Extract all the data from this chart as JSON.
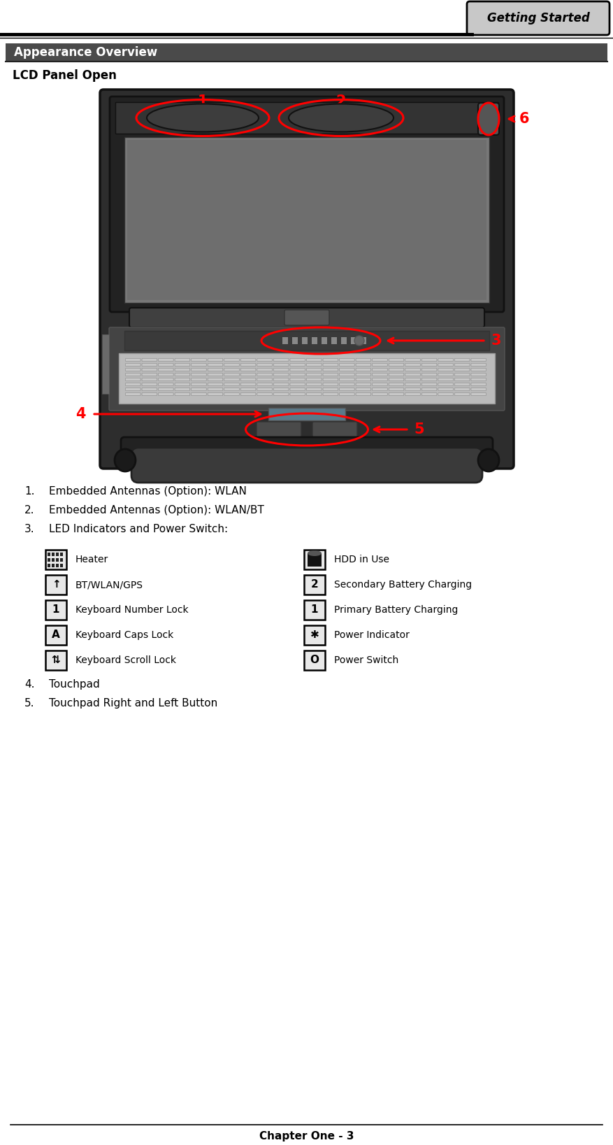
{
  "page_title": "Getting Started",
  "section_title": "Appearance Overview",
  "subsection": "LCD Panel Open",
  "numbered_items": [
    "Embedded Antennas (Option): WLAN",
    "Embedded Antennas (Option): WLAN/BT",
    "LED Indicators and Power Switch:",
    "Touchpad",
    "Touchpad Right and Left Button"
  ],
  "led_items_left": [
    [
      "Heater",
      "~"
    ],
    [
      "BT/WLAN/GPS",
      "↑"
    ],
    [
      "Keyboard Number Lock",
      "1"
    ],
    [
      "Keyboard Caps Lock",
      "A"
    ],
    [
      "Keyboard Scroll Lock",
      "⇅"
    ]
  ],
  "led_items_right": [
    [
      "HDD in Use",
      "▮"
    ],
    [
      "Secondary Battery Charging",
      "2"
    ],
    [
      "Primary Battery Charging",
      "1"
    ],
    [
      "Power Indicator",
      "✱"
    ],
    [
      "Power Switch",
      "O"
    ]
  ],
  "footer": "Chapter One - 3",
  "bg_color": "#ffffff",
  "header_tab_color": "#c8c8c8",
  "section_bar_color": "#4a4a4a",
  "section_text_color": "#ffffff",
  "arrow_color": "#ff0000",
  "body_text_color": "#000000",
  "laptop_outer_color": "#3a3a3a",
  "laptop_dark": "#1a1a1a",
  "laptop_medium": "#5a5a5a",
  "laptop_light": "#7a7a7a",
  "screen_color": "#6a6a6a",
  "kb_color": "#c8c8c8"
}
